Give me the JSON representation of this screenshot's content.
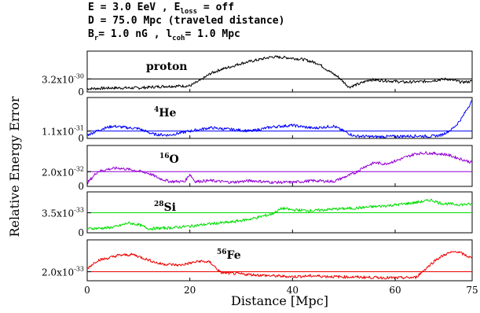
{
  "header": {
    "line1": {
      "a": "E = 3.0 EeV , E",
      "sub": "loss",
      "b": " = off"
    },
    "line2": "D = 75.0 Mpc (traveled distance)",
    "line3": {
      "a": "B",
      "sub1": "r",
      "b": "= 1.0 nG , l",
      "sub2": "coh",
      "c": "= 1.0 Mpc"
    }
  },
  "chart_data": {
    "type": "line",
    "xlabel": "Distance [Mpc]",
    "ylabel": "Relative Energy Error",
    "xlim": [
      0,
      75
    ],
    "xticks": [
      "0",
      "20",
      "40",
      "60",
      "75"
    ],
    "xtick_values": [
      0,
      20,
      40,
      60,
      75
    ],
    "grid": false,
    "panels": [
      {
        "series": {
          "name_sup": "",
          "name": "proton",
          "color": "#000000"
        },
        "ref_label": {
          "mantissa": "3.2x10",
          "exp": "-30"
        },
        "zero_label": "0",
        "ylim": [
          0,
          1.0
        ],
        "ref_level": 0.32,
        "x": [
          0,
          5,
          10,
          15,
          20,
          22,
          24,
          26,
          28,
          30,
          33,
          36,
          39,
          42,
          45,
          47,
          49,
          51,
          53,
          55,
          58,
          62,
          66,
          70,
          73,
          75
        ],
        "values": [
          0.08,
          0.1,
          0.1,
          0.14,
          0.15,
          0.28,
          0.45,
          0.55,
          0.62,
          0.7,
          0.78,
          0.86,
          0.84,
          0.8,
          0.7,
          0.52,
          0.36,
          0.12,
          0.2,
          0.3,
          0.28,
          0.24,
          0.26,
          0.32,
          0.24,
          0.26
        ]
      },
      {
        "series": {
          "name_sup": "4",
          "name": "He",
          "color": "#0000ff"
        },
        "ref_label": {
          "mantissa": "1.1x10",
          "exp": "-31"
        },
        "zero_label": "0",
        "ylim": [
          0,
          1.0
        ],
        "ref_level": 0.18,
        "x": [
          0,
          3,
          5,
          8,
          10,
          13,
          16,
          20,
          24,
          28,
          32,
          36,
          40,
          44,
          48,
          52,
          56,
          60,
          64,
          67,
          69,
          71,
          72,
          73,
          74,
          75
        ],
        "values": [
          0.08,
          0.24,
          0.3,
          0.26,
          0.24,
          0.1,
          0.08,
          0.18,
          0.26,
          0.22,
          0.18,
          0.28,
          0.32,
          0.25,
          0.3,
          0.06,
          0.04,
          0.05,
          0.06,
          0.05,
          0.08,
          0.22,
          0.34,
          0.5,
          0.72,
          0.92
        ]
      },
      {
        "series": {
          "name_sup": "16",
          "name": "O",
          "color": "#9400d3"
        },
        "ref_label": {
          "mantissa": "2.0x10",
          "exp": "-32"
        },
        "zero_label": "0",
        "ylim": [
          0,
          1.0
        ],
        "ref_level": 0.36,
        "x": [
          0,
          2,
          4,
          6,
          9,
          12,
          14,
          16,
          19,
          20,
          21,
          24,
          28,
          32,
          36,
          40,
          44,
          48,
          50,
          52,
          54,
          56,
          58,
          60,
          64,
          66,
          70,
          73,
          75
        ],
        "values": [
          0.08,
          0.36,
          0.42,
          0.45,
          0.4,
          0.32,
          0.2,
          0.12,
          0.12,
          0.3,
          0.12,
          0.14,
          0.1,
          0.14,
          0.1,
          0.1,
          0.14,
          0.12,
          0.22,
          0.32,
          0.48,
          0.58,
          0.55,
          0.62,
          0.8,
          0.82,
          0.78,
          0.66,
          0.58
        ]
      },
      {
        "series": {
          "name_sup": "28",
          "name": "Si",
          "color": "#00dd00"
        },
        "ref_label": {
          "mantissa": "3.5x10",
          "exp": "-33"
        },
        "zero_label": "0",
        "ylim": [
          0,
          1.0
        ],
        "ref_level": 0.49,
        "x": [
          0,
          2,
          4,
          6,
          8,
          10,
          12,
          16,
          20,
          24,
          28,
          32,
          36,
          38,
          40,
          44,
          48,
          52,
          56,
          60,
          64,
          67,
          69,
          71,
          73,
          75
        ],
        "values": [
          0.1,
          0.11,
          0.12,
          0.16,
          0.24,
          0.2,
          0.1,
          0.12,
          0.16,
          0.22,
          0.26,
          0.34,
          0.46,
          0.6,
          0.56,
          0.54,
          0.58,
          0.6,
          0.64,
          0.68,
          0.74,
          0.8,
          0.72,
          0.7,
          0.69,
          0.7
        ]
      },
      {
        "series": {
          "name_sup": "56",
          "name": "Fe",
          "color": "#ee0000"
        },
        "ref_label": {
          "mantissa": "2.0x10",
          "exp": "-33"
        },
        "zero_label": "",
        "ylim": [
          0,
          1.0
        ],
        "ref_level": 0.22,
        "x": [
          0,
          2,
          4,
          6,
          9,
          11,
          14,
          18,
          22,
          24,
          26,
          28,
          32,
          36,
          40,
          44,
          48,
          52,
          56,
          60,
          64,
          66,
          68,
          70,
          72,
          75
        ],
        "values": [
          0.3,
          0.5,
          0.55,
          0.62,
          0.64,
          0.55,
          0.42,
          0.38,
          0.48,
          0.45,
          0.2,
          0.18,
          0.15,
          0.12,
          0.1,
          0.12,
          0.1,
          0.09,
          0.08,
          0.07,
          0.08,
          0.3,
          0.52,
          0.66,
          0.72,
          0.55
        ]
      }
    ]
  }
}
